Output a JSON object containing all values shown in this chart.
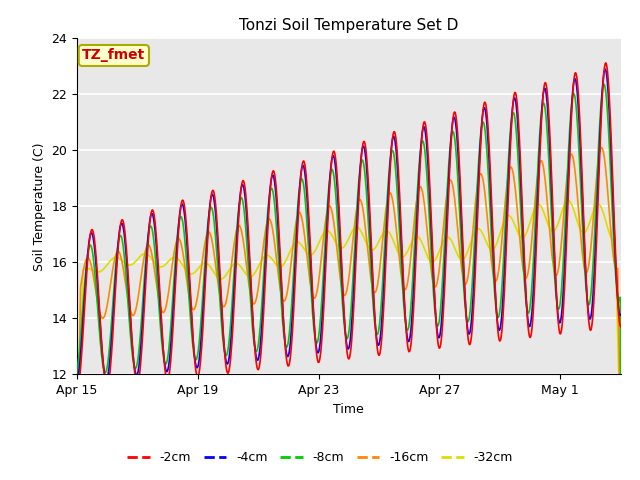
{
  "title": "Tonzi Soil Temperature Set D",
  "xlabel": "Time",
  "ylabel": "Soil Temperature (C)",
  "annotation": "TZ_fmet",
  "annotation_color": "#cc0000",
  "annotation_bg": "#ffffcc",
  "annotation_border": "#aaaa00",
  "ylim": [
    12,
    24
  ],
  "yticks": [
    12,
    14,
    16,
    18,
    20,
    22,
    24
  ],
  "colors": {
    "-2cm": "#ff0000",
    "-4cm": "#0000ff",
    "-8cm": "#00cc00",
    "-16cm": "#ff8800",
    "-32cm": "#dddd00"
  },
  "legend_labels": [
    "-2cm",
    "-4cm",
    "-8cm",
    "-16cm",
    "-32cm"
  ],
  "xtick_labels": [
    "Apr 15",
    "Apr 19",
    "Apr 23",
    "Apr 27",
    "May 1"
  ],
  "xtick_positions": [
    0,
    4,
    8,
    12,
    16
  ],
  "plot_bg": "#e8e8e8",
  "grid_color": "#ffffff",
  "line_width": 1.2,
  "num_days": 18,
  "pts_per_day": 48
}
